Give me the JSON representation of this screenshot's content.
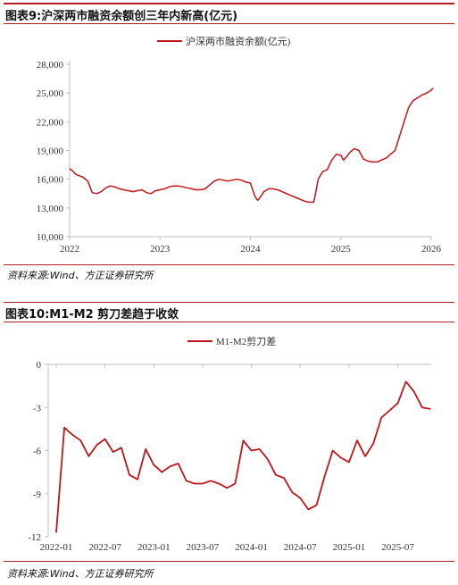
{
  "figure9": {
    "heading": "图表9:沪深两市融资余额创三年内新高(亿元)",
    "source": "资料来源:Wind、方正证券研究所"
  },
  "figure10": {
    "heading": "图表10:M1-M2 剪刀差趋于收敛",
    "source": "资料来源:Wind、方正证券研究所"
  },
  "colors": {
    "line": "#c0151b",
    "accent": "#b01e23",
    "axis": "#bfbfbf"
  },
  "chart_data": [
    {
      "type": "line",
      "title": "",
      "legend": "top-center",
      "series": [
        {
          "name": "沪深两市融资余额(亿元)",
          "x": [
            2022.0,
            2022.03,
            2022.07,
            2022.1,
            2022.15,
            2022.2,
            2022.25,
            2022.3,
            2022.35,
            2022.4,
            2022.45,
            2022.5,
            2022.55,
            2022.6,
            2022.65,
            2022.7,
            2022.75,
            2022.8,
            2022.85,
            2022.9,
            2022.95,
            2023.0,
            2023.05,
            2023.1,
            2023.15,
            2023.2,
            2023.25,
            2023.3,
            2023.35,
            2023.4,
            2023.45,
            2023.5,
            2023.55,
            2023.6,
            2023.65,
            2023.7,
            2023.75,
            2023.8,
            2023.85,
            2023.9,
            2023.95,
            2024.0,
            2024.05,
            2024.08,
            2024.1,
            2024.15,
            2024.2,
            2024.25,
            2024.3,
            2024.35,
            2024.4,
            2024.45,
            2024.5,
            2024.55,
            2024.6,
            2024.65,
            2024.7,
            2024.72,
            2024.75,
            2024.78,
            2024.8,
            2024.85,
            2024.9,
            2024.95,
            2025.0,
            2025.03,
            2025.06,
            2025.1,
            2025.15,
            2025.2,
            2025.25,
            2025.3,
            2025.35,
            2025.4,
            2025.45,
            2025.5,
            2025.55,
            2025.6,
            2025.65,
            2025.7,
            2025.75,
            2025.8,
            2025.85,
            2025.9,
            2025.95,
            2026.0,
            2026.02
          ],
          "values": [
            17100,
            16900,
            16500,
            16400,
            16200,
            15800,
            14600,
            14500,
            14700,
            15100,
            15300,
            15200,
            15000,
            14900,
            14800,
            14700,
            14800,
            14900,
            14600,
            14500,
            14800,
            14900,
            15000,
            15200,
            15300,
            15300,
            15200,
            15100,
            15000,
            14900,
            14900,
            15000,
            15400,
            15800,
            16000,
            15900,
            15800,
            15900,
            16000,
            15900,
            15700,
            15600,
            14200,
            13800,
            14000,
            14700,
            15000,
            15000,
            14900,
            14700,
            14500,
            14300,
            14100,
            13900,
            13700,
            13600,
            13600,
            14500,
            16000,
            16500,
            16800,
            17000,
            18000,
            18600,
            18500,
            18000,
            18300,
            18800,
            19200,
            19000,
            18100,
            17900,
            17800,
            17800,
            18000,
            18200,
            18600,
            19000,
            20500,
            22000,
            23500,
            24200,
            24500,
            24800,
            25000,
            25300,
            25500
          ]
        }
      ],
      "xlim": [
        2022,
        2026
      ],
      "x_ticks": [
        "2022",
        "2023",
        "2024",
        "2025",
        "2026"
      ],
      "ylim": [
        10000,
        28000
      ],
      "y_ticks": [
        "10,000",
        "13,000",
        "16,000",
        "19,000",
        "22,000",
        "25,000",
        "28,000"
      ],
      "grid": false
    },
    {
      "type": "line",
      "title": "",
      "legend": "top-center",
      "categories": [
        "2022-01",
        "2022-02",
        "2022-03",
        "2022-04",
        "2022-05",
        "2022-06",
        "2022-07",
        "2022-08",
        "2022-09",
        "2022-10",
        "2022-11",
        "2022-12",
        "2023-01",
        "2023-02",
        "2023-03",
        "2023-04",
        "2023-05",
        "2023-06",
        "2023-07",
        "2023-08",
        "2023-09",
        "2023-10",
        "2023-11",
        "2023-12",
        "2024-01",
        "2024-02",
        "2024-03",
        "2024-04",
        "2024-05",
        "2024-06",
        "2024-07",
        "2024-08",
        "2024-09",
        "2024-10",
        "2024-11",
        "2024-12",
        "2025-01",
        "2025-02",
        "2025-03",
        "2025-04",
        "2025-05",
        "2025-06",
        "2025-07",
        "2025-08",
        "2025-09",
        "2025-10",
        "2025-11"
      ],
      "x_ticks": [
        "2022-01",
        "2022-07",
        "2023-01",
        "2023-07",
        "2024-01",
        "2024-07",
        "2025-01",
        "2025-07"
      ],
      "series": [
        {
          "name": "M1-M2剪刀差",
          "values": [
            -11.7,
            -4.4,
            -4.9,
            -5.3,
            -6.4,
            -5.6,
            -5.2,
            -6.1,
            -5.8,
            -7.7,
            -8.0,
            -5.9,
            -7.0,
            -7.5,
            -7.1,
            -6.9,
            -8.1,
            -8.3,
            -8.3,
            -8.1,
            -8.3,
            -8.6,
            -8.3,
            -5.3,
            -6.0,
            -5.9,
            -6.6,
            -7.7,
            -7.9,
            -8.9,
            -9.3,
            -10.1,
            -9.8,
            -7.8,
            -6.0,
            -6.5,
            -6.8,
            -5.3,
            -6.4,
            -5.5,
            -3.7,
            -3.2,
            -2.7,
            -1.2,
            -1.9,
            -3.0,
            -3.1
          ]
        }
      ],
      "ylim": [
        -12,
        0
      ],
      "y_ticks": [
        "-12",
        "-9",
        "-6",
        "-3",
        "0"
      ],
      "grid": false
    }
  ]
}
